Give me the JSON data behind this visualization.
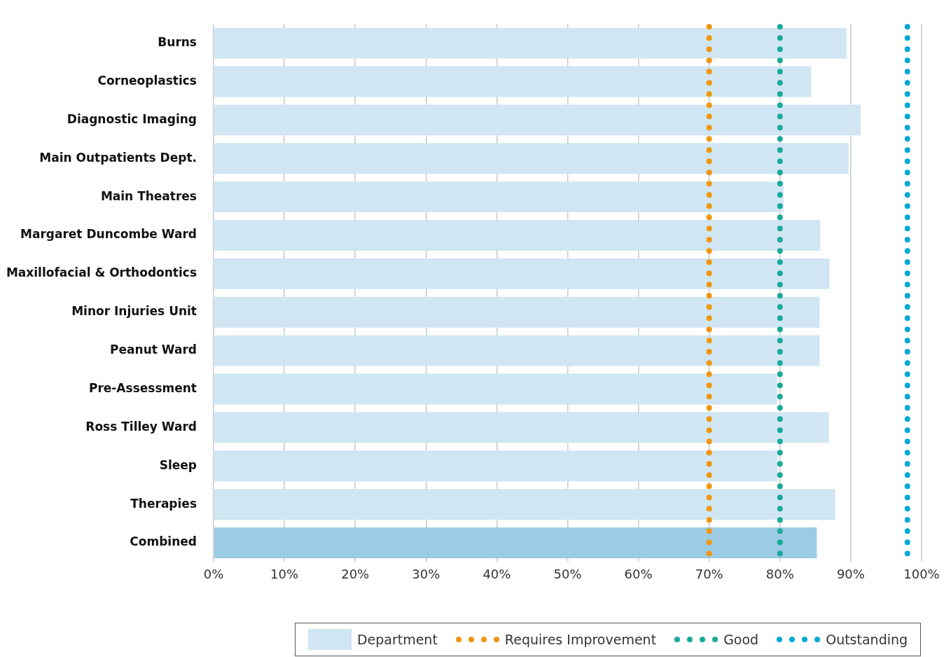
{
  "chart_data": {
    "type": "bar",
    "orientation": "horizontal",
    "categories": [
      "Burns",
      "Corneoplastics",
      "Diagnostic Imaging",
      "Main Outpatients Dept.",
      "Main Theatres",
      "Margaret Duncombe Ward",
      "Maxillofacial & Orthodontics",
      "Minor Injuries Unit",
      "Peanut Ward",
      "Pre-Assessment",
      "Ross Tilley Ward",
      "Sleep",
      "Therapies",
      "Combined"
    ],
    "series": [
      {
        "name": "Department",
        "color": "#d0e6f2",
        "colors": [
          "#d0e6f2",
          "#d0e6f2",
          "#d0e6f2",
          "#d0e6f2",
          "#d0e6f2",
          "#d0e6f2",
          "#d0e6f2",
          "#d0e6f2",
          "#d0e6f2",
          "#d0e6f2",
          "#d0e6f2",
          "#d0e6f2",
          "#d0e6f2",
          "#9ccbe5"
        ],
        "values": [
          89.4,
          84.4,
          91.4,
          89.7,
          80.5,
          85.7,
          87.0,
          85.6,
          85.6,
          79.6,
          86.9,
          79.7,
          87.8,
          85.2
        ]
      }
    ],
    "xlim": [
      0,
      100
    ],
    "xticks": [
      {
        "value": 0,
        "label": "0%"
      },
      {
        "value": 10,
        "label": "10%"
      },
      {
        "value": 20,
        "label": "20%"
      },
      {
        "value": 30,
        "label": "30%"
      },
      {
        "value": 40,
        "label": "40%"
      },
      {
        "value": 50,
        "label": "50%"
      },
      {
        "value": 60,
        "label": "60%"
      },
      {
        "value": 70,
        "label": "70%"
      },
      {
        "value": 80,
        "label": "80%"
      },
      {
        "value": 90,
        "label": "90%"
      },
      {
        "value": 100,
        "label": "100%"
      }
    ],
    "ref_lines": [
      {
        "axis": "x",
        "value": 70,
        "label": "Requires Improvement",
        "color": "#f0960f",
        "line_style": "dotted"
      },
      {
        "axis": "x",
        "value": 80,
        "label": "Good",
        "color": "#1aa99a",
        "line_style": "dotted"
      },
      {
        "axis": "x",
        "value": 98,
        "label": "Outstanding",
        "color": "#00a9d4",
        "line_style": "dotted"
      }
    ],
    "grid": "x",
    "legend": "bottom"
  }
}
